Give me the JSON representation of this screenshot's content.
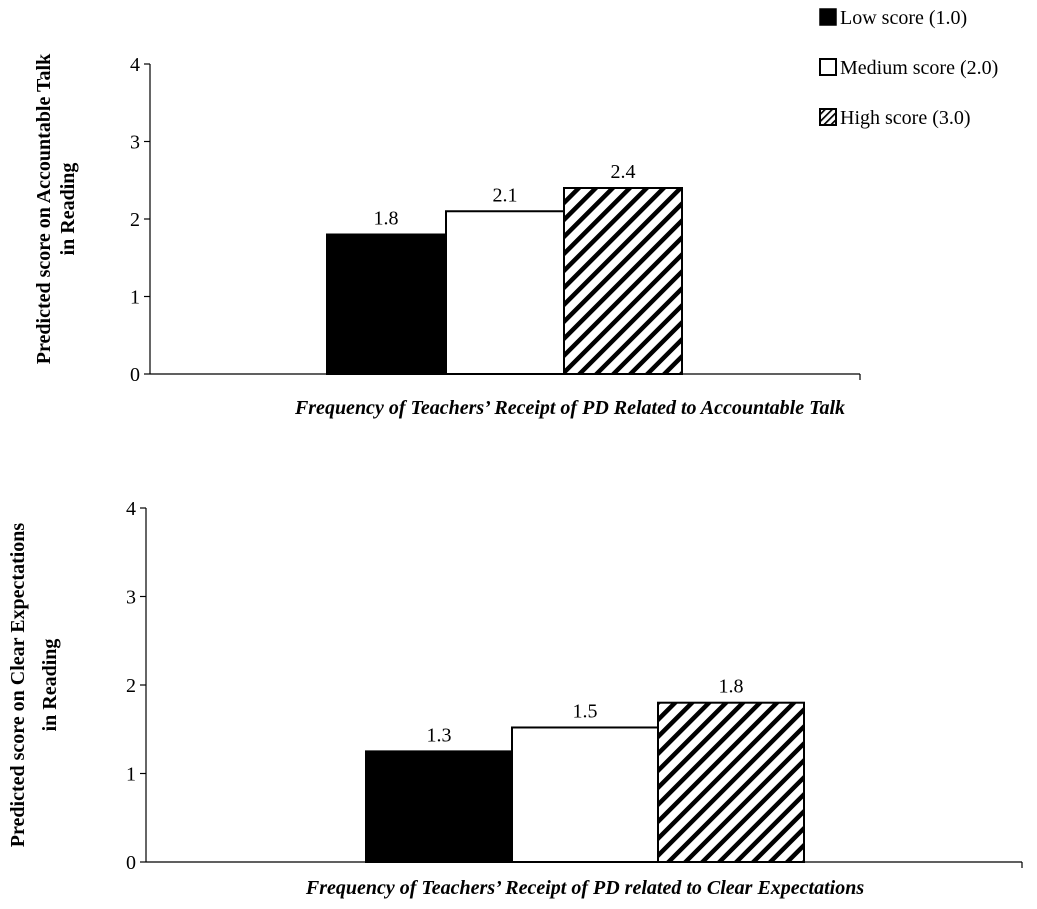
{
  "colors": {
    "low": "#000000",
    "medium": "#ffffff",
    "high": "hatch",
    "axis": "#000000"
  },
  "legend": {
    "position": "top-right",
    "items": [
      {
        "label": "Low score (1.0)",
        "swatch": "solid-black"
      },
      {
        "label": "Medium score (2.0)",
        "swatch": "white"
      },
      {
        "label": "High score (3.0)",
        "swatch": "diagonal-hatch"
      }
    ]
  },
  "chart_data": [
    {
      "type": "bar",
      "title": "",
      "ylabel_line1": "Predicted score on Accountable Talk",
      "ylabel_line2": "in Reading",
      "xlabel": "Frequency of Teachers’ Receipt of PD Related to Accountable Talk",
      "ylim": [
        0,
        4
      ],
      "yticks": [
        "0",
        "1",
        "2",
        "3",
        "4"
      ],
      "grid": false,
      "series": [
        {
          "name": "Low score (1.0)",
          "value": 1.8,
          "label": "1.8"
        },
        {
          "name": "Medium score (2.0)",
          "value": 2.1,
          "label": "2.1"
        },
        {
          "name": "High score (3.0)",
          "value": 2.4,
          "label": "2.4"
        }
      ]
    },
    {
      "type": "bar",
      "title": "",
      "ylabel_line1": "Predicted score on Clear Expectations",
      "ylabel_line2": "in Reading",
      "xlabel": "Frequency of Teachers’ Receipt of PD related to Clear Expectations",
      "ylim": [
        0,
        4
      ],
      "yticks": [
        "0",
        "1",
        "2",
        "3",
        "4"
      ],
      "grid": false,
      "series": [
        {
          "name": "Low score (1.0)",
          "value": 1.25,
          "label": "1.3"
        },
        {
          "name": "Medium score (2.0)",
          "value": 1.52,
          "label": "1.5"
        },
        {
          "name": "High score (3.0)",
          "value": 1.8,
          "label": "1.8"
        }
      ]
    }
  ]
}
